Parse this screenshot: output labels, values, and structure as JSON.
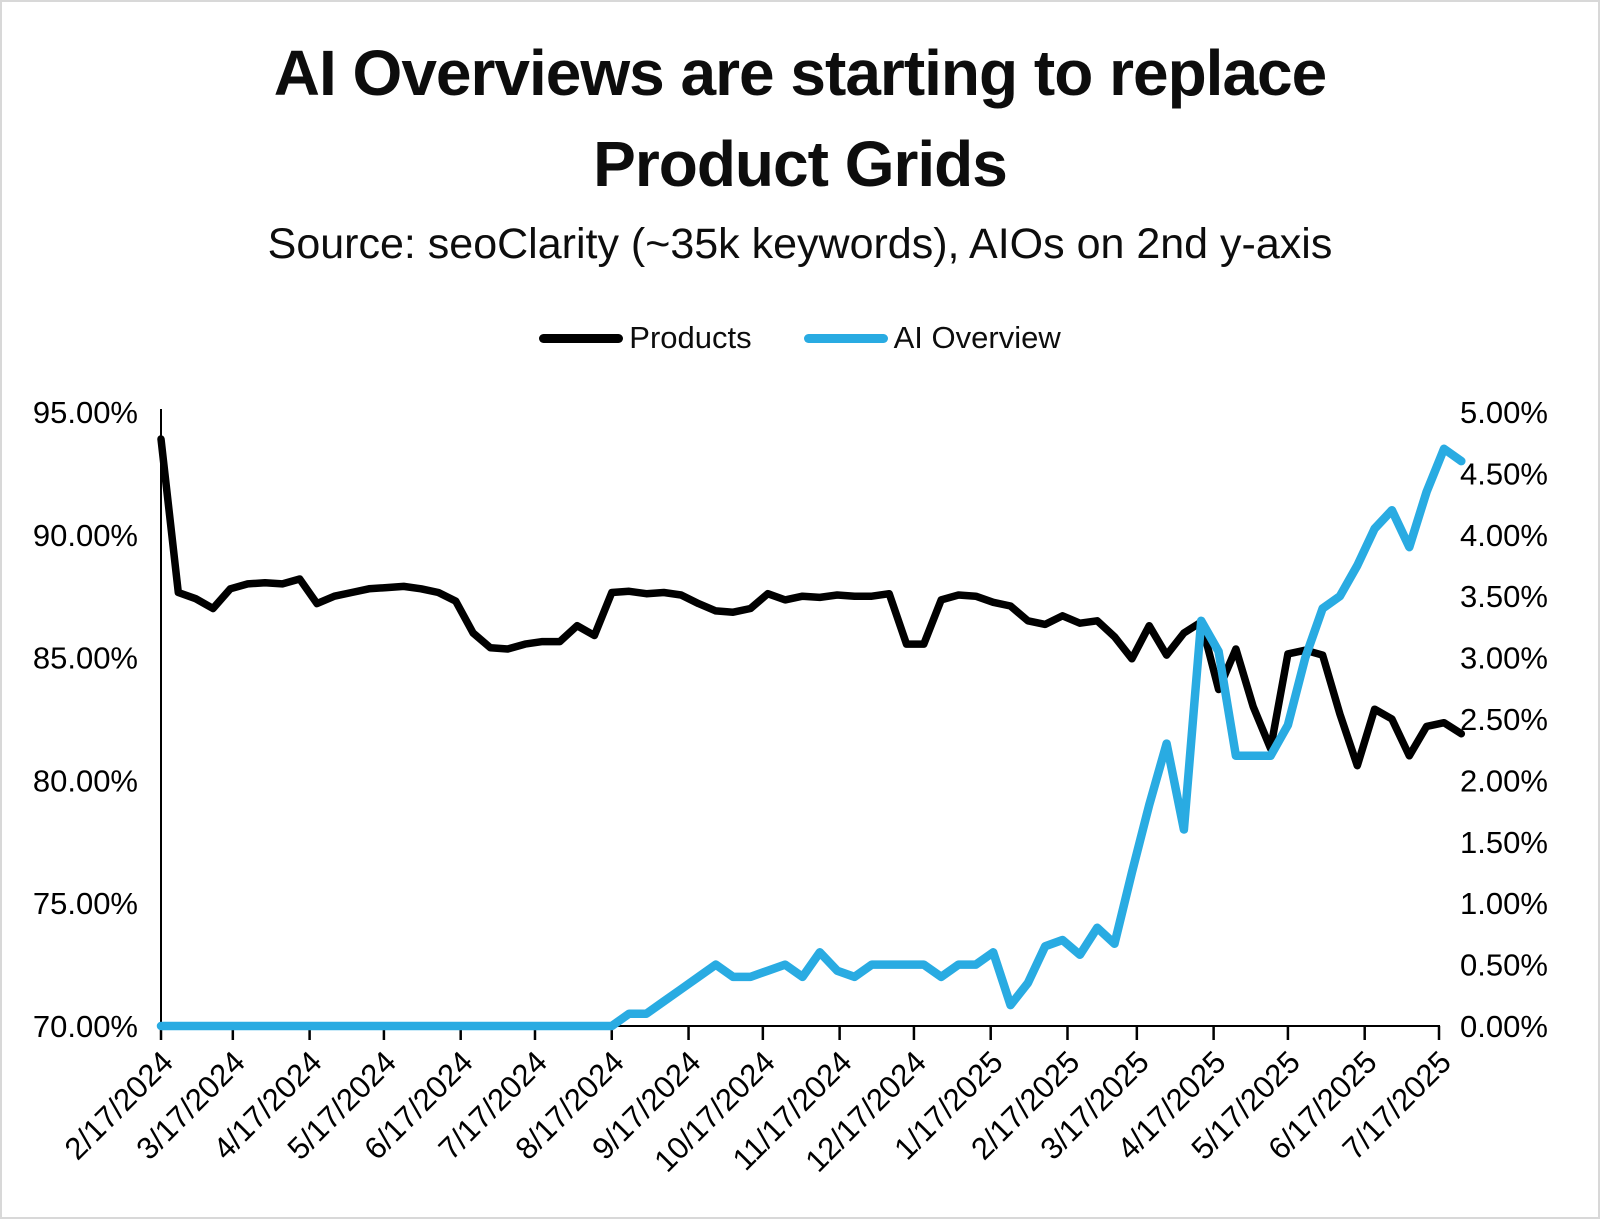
{
  "title": {
    "line1": "AI Overviews are starting to replace",
    "line2": "Product Grids"
  },
  "subtitle": "Source: seoClarity (~35k keywords), AIOs on 2nd y-axis",
  "legend": {
    "items": [
      {
        "label": "Products",
        "color": "#000000"
      },
      {
        "label": "AI Overview",
        "color": "#29abe2"
      }
    ]
  },
  "chart_data": {
    "type": "line",
    "title": "AI Overviews are starting to replace Product Grids",
    "subtitle": "Source: seoClarity (~35k keywords), AIOs on 2nd y-axis",
    "grid": false,
    "legend_position": "top",
    "x": [
      "2/17/2024",
      "2/24/2024",
      "3/2/2024",
      "3/9/2024",
      "3/16/2024",
      "3/23/2024",
      "3/30/2024",
      "4/6/2024",
      "4/13/2024",
      "4/20/2024",
      "4/27/2024",
      "5/4/2024",
      "5/11/2024",
      "5/18/2024",
      "5/25/2024",
      "6/1/2024",
      "6/8/2024",
      "6/15/2024",
      "6/22/2024",
      "6/29/2024",
      "7/6/2024",
      "7/13/2024",
      "7/20/2024",
      "7/27/2024",
      "8/3/2024",
      "8/10/2024",
      "8/17/2024",
      "8/24/2024",
      "8/31/2024",
      "9/7/2024",
      "9/14/2024",
      "9/21/2024",
      "9/28/2024",
      "10/5/2024",
      "10/12/2024",
      "10/19/2024",
      "10/26/2024",
      "11/2/2024",
      "11/9/2024",
      "11/16/2024",
      "11/23/2024",
      "11/30/2024",
      "12/7/2024",
      "12/14/2024",
      "12/21/2024",
      "12/28/2024",
      "1/4/2025",
      "1/11/2025",
      "1/18/2025",
      "1/25/2025",
      "2/1/2025",
      "2/8/2025",
      "2/15/2025",
      "2/22/2025",
      "3/1/2025",
      "3/8/2025",
      "3/15/2025",
      "3/22/2025",
      "3/29/2025",
      "4/5/2025",
      "4/12/2025",
      "4/19/2025",
      "4/26/2025",
      "5/3/2025",
      "5/10/2025",
      "5/17/2025",
      "5/24/2025",
      "5/31/2025",
      "6/7/2025",
      "6/14/2025",
      "6/21/2025",
      "6/28/2025",
      "7/5/2025",
      "7/12/2025",
      "7/19/2025",
      "7/26/2025"
    ],
    "series": [
      {
        "name": "Products",
        "axis": "left",
        "color": "#000000",
        "stroke_width": 7.5,
        "values": [
          93.9,
          87.65,
          87.4,
          87.0,
          87.8,
          88.0,
          88.05,
          88.0,
          88.2,
          87.2,
          87.5,
          87.65,
          87.8,
          87.85,
          87.9,
          87.8,
          87.65,
          87.3,
          86.0,
          85.4,
          85.35,
          85.55,
          85.65,
          85.65,
          86.3,
          85.9,
          87.65,
          87.7,
          87.6,
          87.65,
          87.55,
          87.2,
          86.9,
          86.85,
          87.0,
          87.6,
          87.35,
          87.5,
          87.45,
          87.55,
          87.5,
          87.5,
          87.6,
          85.55,
          85.55,
          87.35,
          87.55,
          87.5,
          87.25,
          87.1,
          86.5,
          86.35,
          86.7,
          86.4,
          86.5,
          85.85,
          84.95,
          86.3,
          85.1,
          86.0,
          86.45,
          83.7,
          85.35,
          83.0,
          81.3,
          85.15,
          85.3,
          85.1,
          82.7,
          80.6,
          82.9,
          82.5,
          81.0,
          82.2,
          82.35,
          81.9
        ]
      },
      {
        "name": "AI Overview",
        "axis": "right",
        "color": "#29abe2",
        "stroke_width": 8.5,
        "values": [
          0,
          0,
          0,
          0,
          0,
          0,
          0,
          0,
          0,
          0,
          0,
          0,
          0,
          0,
          0,
          0,
          0,
          0,
          0,
          0,
          0,
          0,
          0,
          0,
          0,
          0,
          0,
          0.1,
          0.1,
          0.2,
          0.3,
          0.4,
          0.5,
          0.4,
          0.4,
          0.45,
          0.5,
          0.4,
          0.6,
          0.45,
          0.4,
          0.5,
          0.5,
          0.5,
          0.5,
          0.4,
          0.5,
          0.5,
          0.6,
          0.17,
          0.35,
          0.65,
          0.7,
          0.58,
          0.8,
          0.67,
          1.25,
          1.8,
          2.3,
          1.6,
          3.3,
          3.05,
          2.2,
          2.2,
          2.2,
          2.45,
          3.0,
          3.4,
          3.5,
          3.75,
          4.05,
          4.2,
          3.9,
          4.35,
          4.7,
          4.6
        ]
      }
    ],
    "left_axis": {
      "min": 70,
      "max": 95,
      "tick_labels": [
        "95.00%",
        "90.00%",
        "85.00%",
        "80.00%",
        "75.00%",
        "70.00%"
      ],
      "tick_values": [
        95,
        90,
        85,
        80,
        75,
        70
      ]
    },
    "right_axis": {
      "min": 0,
      "max": 5,
      "tick_labels": [
        "5.00%",
        "4.50%",
        "4.00%",
        "3.50%",
        "3.00%",
        "2.50%",
        "2.00%",
        "1.50%",
        "1.00%",
        "0.50%",
        "0.00%"
      ],
      "tick_values": [
        5,
        4.5,
        4,
        3.5,
        3,
        2.5,
        2,
        1.5,
        1,
        0.5,
        0
      ]
    },
    "x_tick_labels": [
      "2/17/2024",
      "3/17/2024",
      "4/17/2024",
      "5/17/2024",
      "6/17/2024",
      "7/17/2024",
      "8/17/2024",
      "9/17/2024",
      "10/17/2024",
      "11/17/2024",
      "12/17/2024",
      "1/17/2025",
      "2/17/2025",
      "3/17/2025",
      "4/17/2025",
      "5/17/2025",
      "6/17/2025",
      "7/17/2025"
    ]
  }
}
